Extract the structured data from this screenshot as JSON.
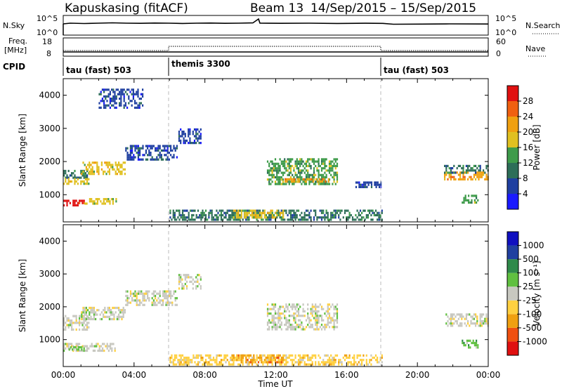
{
  "header": {
    "radar": "Kapuskasing (fitACF)",
    "beam": "Beam 13",
    "date_range": "14/Sep/2015 – 15/Sep/2015"
  },
  "nsky_panel": {
    "label": "N.Sky",
    "left_ticks": [
      "10^5",
      "10^0"
    ],
    "right_ticks": [
      "10^5",
      "10^0"
    ],
    "right_label": "N.Search"
  },
  "freq_panel": {
    "label_line1": "Freq.",
    "label_line2": "[MHz]",
    "left_ticks": [
      "18",
      "8"
    ],
    "right_ticks": [
      "60",
      "0"
    ],
    "right_label": "Nave"
  },
  "cpid_panel": {
    "label": "CPID",
    "segments": [
      {
        "start_hr": 0,
        "label": "tau (fast) 503"
      },
      {
        "start_hr": 6,
        "label": "themis 3300"
      },
      {
        "start_hr": 18,
        "label": "tau (fast) 503"
      }
    ]
  },
  "colors": {
    "power": [
      "#1a1aff",
      "#1f3fa0",
      "#2d6e58",
      "#3e9b4a",
      "#e0c020",
      "#f0a010",
      "#f06010",
      "#e01010"
    ],
    "velocity": [
      "#e01010",
      "#f05010",
      "#f0a010",
      "#ffd040",
      "#c8c8c0",
      "#60c040",
      "#2f8a4a",
      "#2040a0",
      "#1010c0"
    ]
  },
  "power_colorbar": {
    "label": "Power [dB]",
    "ticks": [
      "28",
      "24",
      "20",
      "16",
      "12",
      "8",
      "4"
    ]
  },
  "velocity_colorbar": {
    "label": "Velocity [m s⁻¹]",
    "ticks": [
      "1000",
      "500",
      "100",
      "25",
      "-25",
      "-100",
      "-500",
      "-1000"
    ]
  },
  "chart_data": [
    {
      "type": "heatmap",
      "name": "power",
      "ylabel": "Slant Range [km]",
      "xlim": [
        0,
        24
      ],
      "ylim": [
        180,
        4500
      ],
      "yticks": [
        1000,
        2000,
        3000,
        4000
      ],
      "ytick_labels": [
        "1000",
        "2000",
        "3000",
        "4000"
      ],
      "scatter_regions": [
        {
          "t0": 0.0,
          "t1": 1.5,
          "r0": 1450,
          "r1": 1750,
          "level": 2
        },
        {
          "t0": 0.0,
          "t1": 1.5,
          "r0": 1300,
          "r1": 1500,
          "level": 4
        },
        {
          "t0": 0.0,
          "t1": 1.2,
          "r0": 650,
          "r1": 850,
          "level": 7
        },
        {
          "t0": 1.2,
          "t1": 3.0,
          "r0": 700,
          "r1": 900,
          "level": 4
        },
        {
          "t0": 1.0,
          "t1": 3.5,
          "r0": 1600,
          "r1": 2000,
          "level": 4
        },
        {
          "t0": 3.5,
          "t1": 6.5,
          "r0": 2000,
          "r1": 2500,
          "level": 1
        },
        {
          "t0": 6.5,
          "t1": 7.8,
          "r0": 2500,
          "r1": 3000,
          "level": 1
        },
        {
          "t0": 2.0,
          "t1": 4.5,
          "r0": 3600,
          "r1": 4200,
          "level": 1
        },
        {
          "t0": 11.5,
          "t1": 15.5,
          "r0": 1300,
          "r1": 2100,
          "level": 3
        },
        {
          "t0": 12.5,
          "t1": 15.0,
          "r0": 1350,
          "r1": 1500,
          "level": 5
        },
        {
          "t0": 16.5,
          "t1": 18.0,
          "r0": 1200,
          "r1": 1400,
          "level": 1
        },
        {
          "t0": 21.5,
          "t1": 24.0,
          "r0": 1400,
          "r1": 1700,
          "level": 5
        },
        {
          "t0": 21.5,
          "t1": 24.0,
          "r0": 1600,
          "r1": 1900,
          "level": 2
        },
        {
          "t0": 22.5,
          "t1": 23.5,
          "r0": 700,
          "r1": 1000,
          "level": 3
        },
        {
          "t0": 6.0,
          "t1": 18.0,
          "r0": 200,
          "r1": 550,
          "level": 2
        },
        {
          "t0": 9.5,
          "t1": 12.5,
          "r0": 300,
          "r1": 550,
          "level": 4
        }
      ]
    },
    {
      "type": "heatmap",
      "name": "velocity",
      "xlabel": "Time UT",
      "ylabel": "Slant Range [km]",
      "xlim": [
        0,
        24
      ],
      "ylim": [
        180,
        4500
      ],
      "xticks": [
        0,
        4,
        8,
        12,
        16,
        20,
        24
      ],
      "xtick_labels": [
        "00:00",
        "04:00",
        "08:00",
        "12:00",
        "16:00",
        "20:00",
        "00:00"
      ],
      "yticks": [
        1000,
        2000,
        3000,
        4000
      ],
      "ytick_labels": [
        "1000",
        "2000",
        "3000",
        "4000"
      ],
      "scatter_regions": [
        {
          "t0": 0.0,
          "t1": 1.5,
          "r0": 1300,
          "r1": 1750,
          "level": 4
        },
        {
          "t0": 0.0,
          "t1": 3.0,
          "r0": 650,
          "r1": 900,
          "level": 4
        },
        {
          "t0": 0.3,
          "t1": 1.2,
          "r0": 650,
          "r1": 800,
          "level": 5
        },
        {
          "t0": 1.0,
          "t1": 3.5,
          "r0": 1600,
          "r1": 2000,
          "level": 4
        },
        {
          "t0": 3.5,
          "t1": 6.5,
          "r0": 2000,
          "r1": 2500,
          "level": 4
        },
        {
          "t0": 6.5,
          "t1": 7.8,
          "r0": 2500,
          "r1": 3000,
          "level": 4
        },
        {
          "t0": 11.5,
          "t1": 15.5,
          "r0": 1300,
          "r1": 2100,
          "level": 4
        },
        {
          "t0": 21.5,
          "t1": 24.0,
          "r0": 1400,
          "r1": 1800,
          "level": 4
        },
        {
          "t0": 22.5,
          "t1": 23.5,
          "r0": 700,
          "r1": 1000,
          "level": 5
        },
        {
          "t0": 6.0,
          "t1": 18.0,
          "r0": 200,
          "r1": 550,
          "level": 3
        },
        {
          "t0": 9.5,
          "t1": 12.5,
          "r0": 300,
          "r1": 550,
          "level": 2
        }
      ]
    }
  ]
}
